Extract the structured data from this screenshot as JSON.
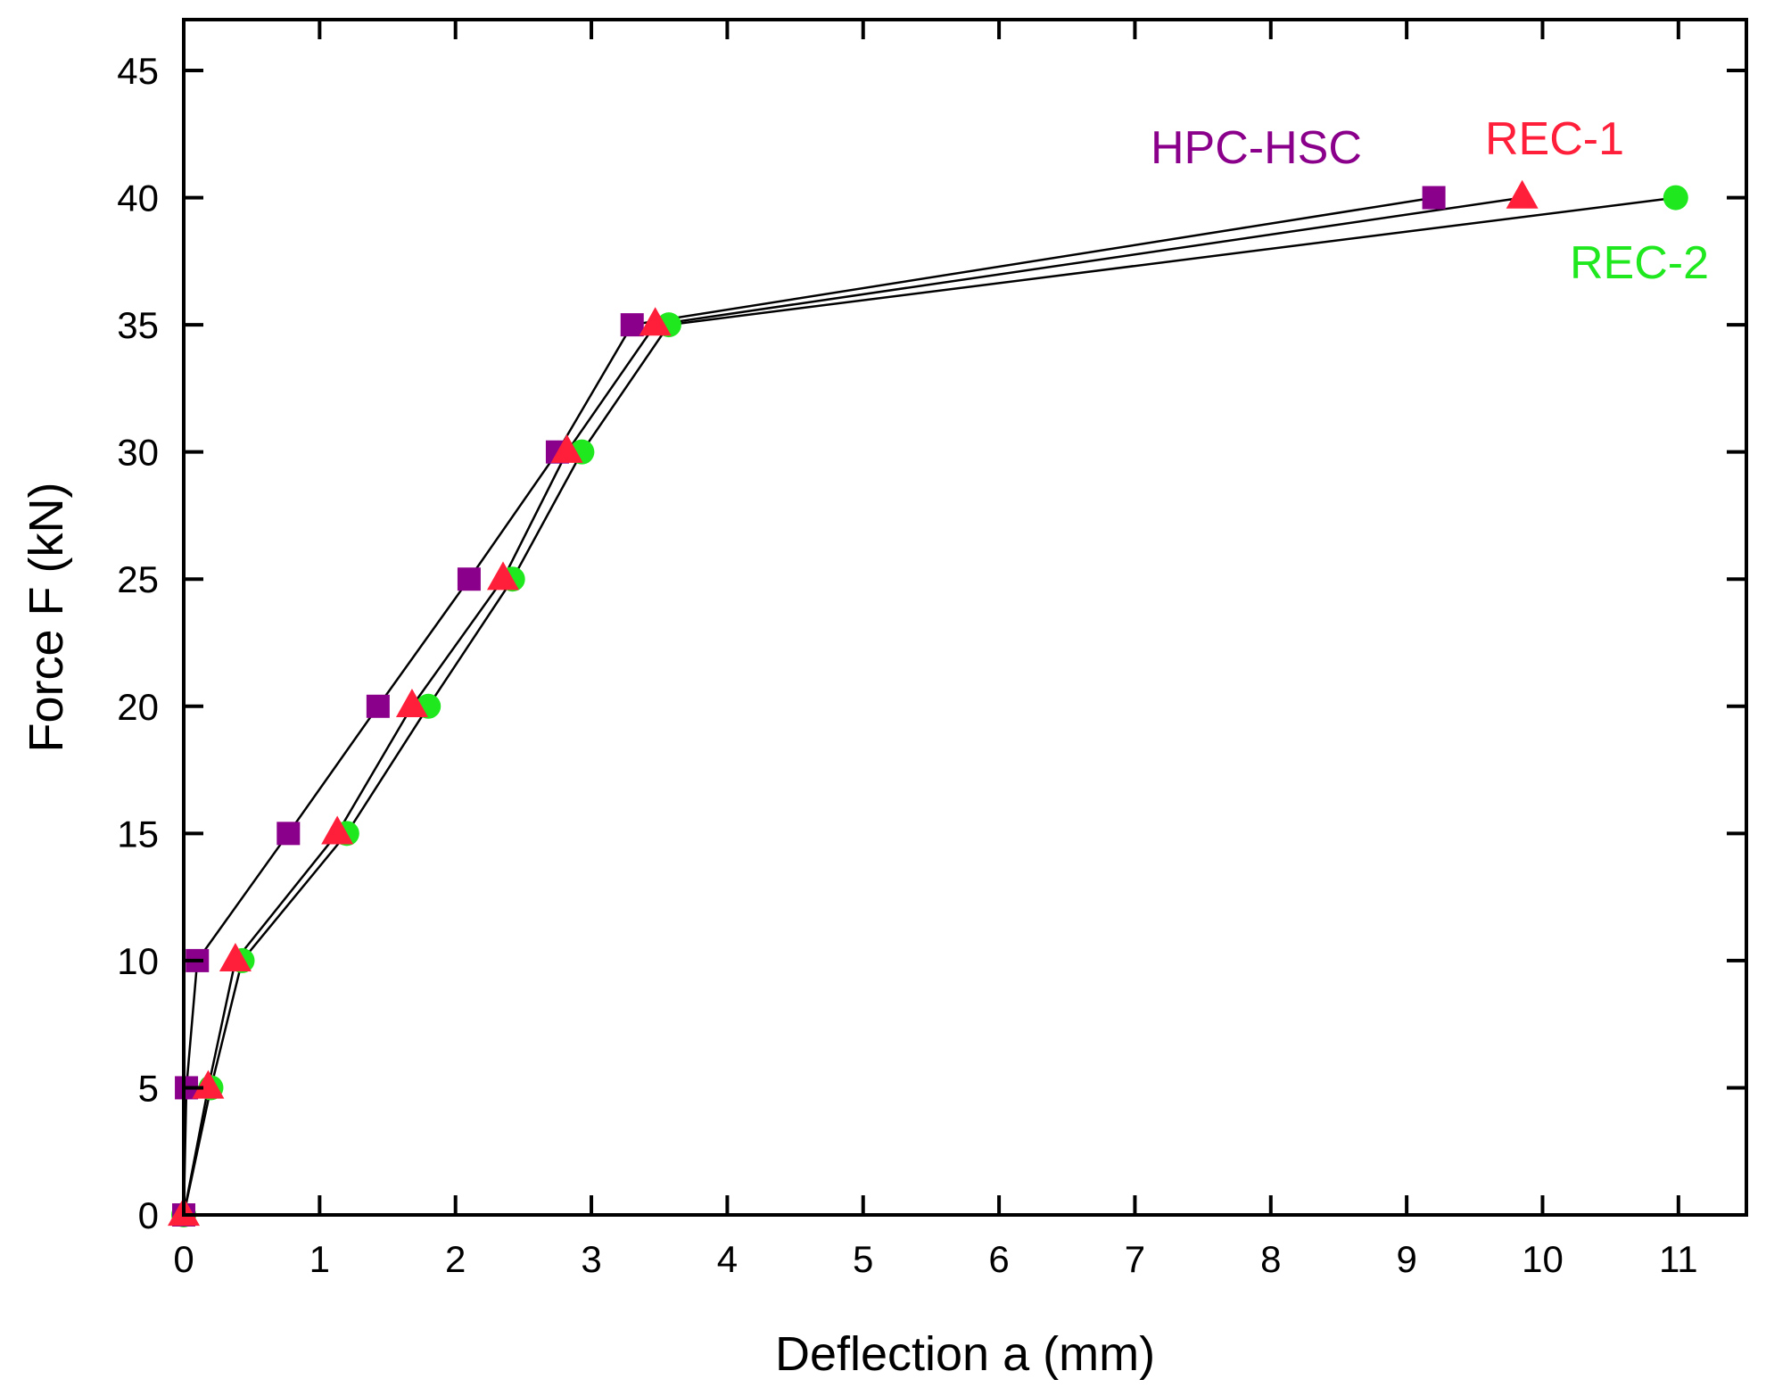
{
  "chart_data": {
    "type": "scatter",
    "title": "",
    "xlabel": "Deflection a (mm)",
    "ylabel": "Force F (kN)",
    "xlim": [
      0,
      11.5
    ],
    "ylim": [
      0,
      47
    ],
    "x_ticks": [
      0,
      1,
      2,
      3,
      4,
      5,
      6,
      7,
      8,
      9,
      10,
      11
    ],
    "y_ticks": [
      0,
      5,
      10,
      15,
      20,
      25,
      30,
      35,
      40,
      45
    ],
    "grid": false,
    "legend": "none",
    "connect_points": true,
    "line_color": "#000000",
    "series": [
      {
        "name": "HPC-HSC",
        "marker": "square",
        "color": "#8B008B",
        "x": [
          0,
          0.02,
          0.1,
          0.77,
          1.43,
          2.1,
          2.75,
          3.3,
          9.2
        ],
        "y": [
          0,
          5,
          10,
          15,
          20,
          25,
          30,
          35,
          40
        ]
      },
      {
        "name": "REC-1",
        "marker": "triangle",
        "color": "#FF1F3A",
        "x": [
          0,
          0.18,
          0.38,
          1.13,
          1.68,
          2.35,
          2.82,
          3.47,
          9.85
        ],
        "y": [
          0,
          5,
          10,
          15,
          20,
          25,
          30,
          35,
          40
        ]
      },
      {
        "name": "REC-2",
        "marker": "circle",
        "color": "#1FE81F",
        "x": [
          0,
          0.2,
          0.43,
          1.2,
          1.8,
          2.42,
          2.93,
          3.57,
          10.98
        ],
        "y": [
          0,
          5,
          10,
          15,
          20,
          25,
          30,
          35,
          40
        ]
      }
    ]
  }
}
